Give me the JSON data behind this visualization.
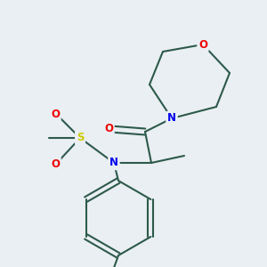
{
  "bg_color": "#eaeff3",
  "bond_color": "#2d5a4a",
  "atom_colors": {
    "N": "#0000ee",
    "O": "#ee0000",
    "S": "#cccc00",
    "C": "#2d5a4a"
  },
  "lw": 1.5,
  "fs": 8.5
}
